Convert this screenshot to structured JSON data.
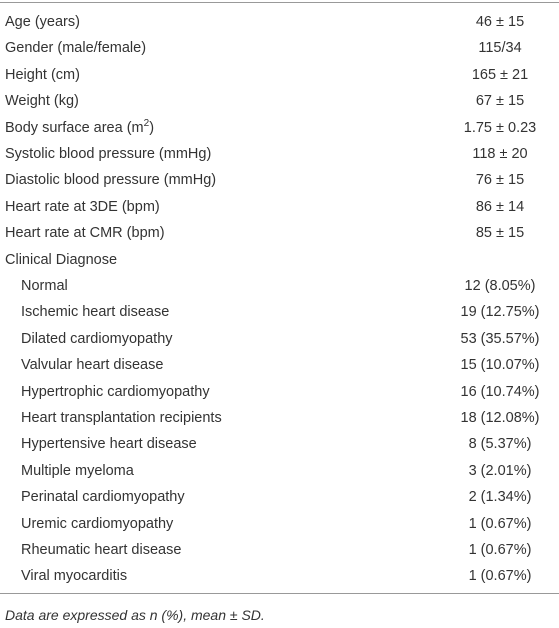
{
  "table": {
    "rows": [
      {
        "label": "Age (years)",
        "value": "46 ± 15"
      },
      {
        "label": "Gender (male/female)",
        "value": "115/34"
      },
      {
        "label": "Height (cm)",
        "value": "165 ± 21"
      },
      {
        "label": "Weight (kg)",
        "value": "67 ± 15"
      },
      {
        "label": {
          "before": "Body surface area (m",
          "sup": "2",
          "after": ")"
        },
        "value": "1.75 ± 0.23"
      },
      {
        "label": "Systolic blood pressure (mmHg)",
        "value": "118 ± 20"
      },
      {
        "label": "Diastolic blood pressure (mmHg)",
        "value": "76 ± 15"
      },
      {
        "label": "Heart rate at 3DE (bpm)",
        "value": "86 ± 14"
      },
      {
        "label": "Heart rate at CMR (bpm)",
        "value": "85 ± 15"
      }
    ],
    "group": {
      "heading": "Clinical Diagnose",
      "rows": [
        {
          "label": "Normal",
          "value": "12 (8.05%)"
        },
        {
          "label": "Ischemic heart disease",
          "value": "19 (12.75%)"
        },
        {
          "label": "Dilated cardiomyopathy",
          "value": "53 (35.57%)"
        },
        {
          "label": "Valvular heart disease",
          "value": "15 (10.07%)"
        },
        {
          "label": "Hypertrophic cardiomyopathy",
          "value": "16 (10.74%)"
        },
        {
          "label": "Heart transplantation recipients",
          "value": "18 (12.08%)"
        },
        {
          "label": "Hypertensive heart disease",
          "value": "8 (5.37%)"
        },
        {
          "label": "Multiple myeloma",
          "value": "3 (2.01%)"
        },
        {
          "label": "Perinatal cardiomyopathy",
          "value": "2 (1.34%)"
        },
        {
          "label": "Uremic cardiomyopathy",
          "value": "1 (0.67%)"
        },
        {
          "label": "Rheumatic heart disease",
          "value": "1 (0.67%)"
        },
        {
          "label": "Viral myocarditis",
          "value": "1 (0.67%)"
        }
      ]
    }
  },
  "footnote": "Data are expressed as n (%), mean ± SD."
}
